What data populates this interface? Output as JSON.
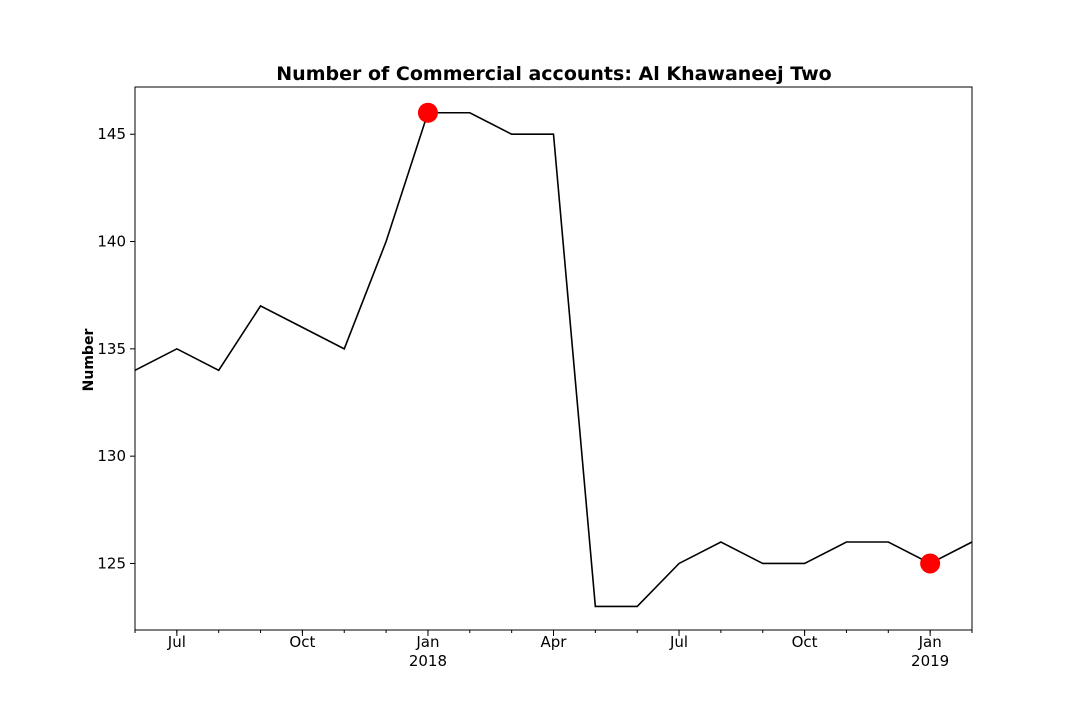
{
  "chart_data": {
    "type": "line",
    "title": "Number of Commercial accounts: Al Khawaneej Two",
    "xlabel": "",
    "ylabel": "Number",
    "x": [
      "2017-06",
      "2017-07",
      "2017-08",
      "2017-09",
      "2017-10",
      "2017-11",
      "2017-12",
      "2018-01",
      "2018-02",
      "2018-03",
      "2018-04",
      "2018-05",
      "2018-06",
      "2018-07",
      "2018-08",
      "2018-09",
      "2018-10",
      "2018-11",
      "2018-12",
      "2019-01",
      "2019-02"
    ],
    "series": [
      {
        "values": [
          134,
          135,
          134,
          137,
          136,
          135,
          140,
          146,
          146,
          145,
          145,
          123,
          123,
          125,
          126,
          125,
          125,
          126,
          126,
          125,
          126
        ],
        "color": "#000000"
      }
    ],
    "highlighted_points": [
      {
        "x": "2018-01",
        "y": 146,
        "color": "#ff0000"
      },
      {
        "x": "2019-01",
        "y": 125,
        "color": "#ff0000"
      }
    ],
    "xlim": [
      "2017-06",
      "2019-02"
    ],
    "ylim": [
      121.9,
      147.2
    ],
    "y_ticks": [
      125,
      130,
      135,
      140,
      145
    ],
    "x_major_ticks": [
      {
        "x": "2017-07",
        "label": "Jul",
        "sublabel": ""
      },
      {
        "x": "2017-10",
        "label": "Oct",
        "sublabel": ""
      },
      {
        "x": "2018-01",
        "label": "Jan",
        "sublabel": "2018"
      },
      {
        "x": "2018-04",
        "label": "Apr",
        "sublabel": ""
      },
      {
        "x": "2018-07",
        "label": "Jul",
        "sublabel": ""
      },
      {
        "x": "2018-10",
        "label": "Oct",
        "sublabel": ""
      },
      {
        "x": "2019-01",
        "label": "Jan",
        "sublabel": "2019"
      }
    ],
    "grid": false,
    "legend": "none"
  }
}
